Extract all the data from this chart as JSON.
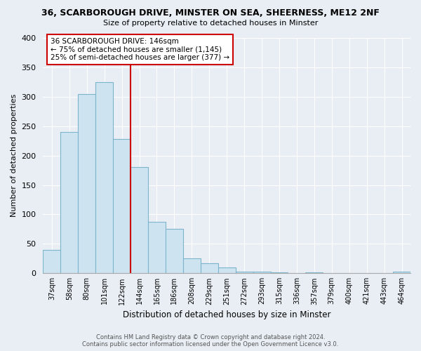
{
  "title": "36, SCARBOROUGH DRIVE, MINSTER ON SEA, SHEERNESS, ME12 2NF",
  "subtitle": "Size of property relative to detached houses in Minster",
  "xlabel": "Distribution of detached houses by size in Minster",
  "ylabel": "Number of detached properties",
  "bar_color": "#cde4f0",
  "bar_edge_color": "#7db4cc",
  "background_color": "#e8eef4",
  "grid_color": "#ffffff",
  "categories": [
    "37sqm",
    "58sqm",
    "80sqm",
    "101sqm",
    "122sqm",
    "144sqm",
    "165sqm",
    "186sqm",
    "208sqm",
    "229sqm",
    "251sqm",
    "272sqm",
    "293sqm",
    "315sqm",
    "336sqm",
    "357sqm",
    "379sqm",
    "400sqm",
    "421sqm",
    "443sqm",
    "464sqm"
  ],
  "values": [
    40,
    240,
    305,
    325,
    228,
    180,
    88,
    75,
    25,
    17,
    10,
    3,
    3,
    2,
    0,
    2,
    0,
    0,
    0,
    0,
    3
  ],
  "ylim": [
    0,
    400
  ],
  "yticks": [
    0,
    50,
    100,
    150,
    200,
    250,
    300,
    350,
    400
  ],
  "vline_index": 4.5,
  "vline_color": "#cc0000",
  "annotation_title": "36 SCARBOROUGH DRIVE: 146sqm",
  "annotation_line1": "← 75% of detached houses are smaller (1,145)",
  "annotation_line2": "25% of semi-detached houses are larger (377) →",
  "annotation_box_facecolor": "#ffffff",
  "annotation_box_edgecolor": "#cc0000",
  "footer1": "Contains HM Land Registry data © Crown copyright and database right 2024.",
  "footer2": "Contains public sector information licensed under the Open Government Licence v3.0."
}
